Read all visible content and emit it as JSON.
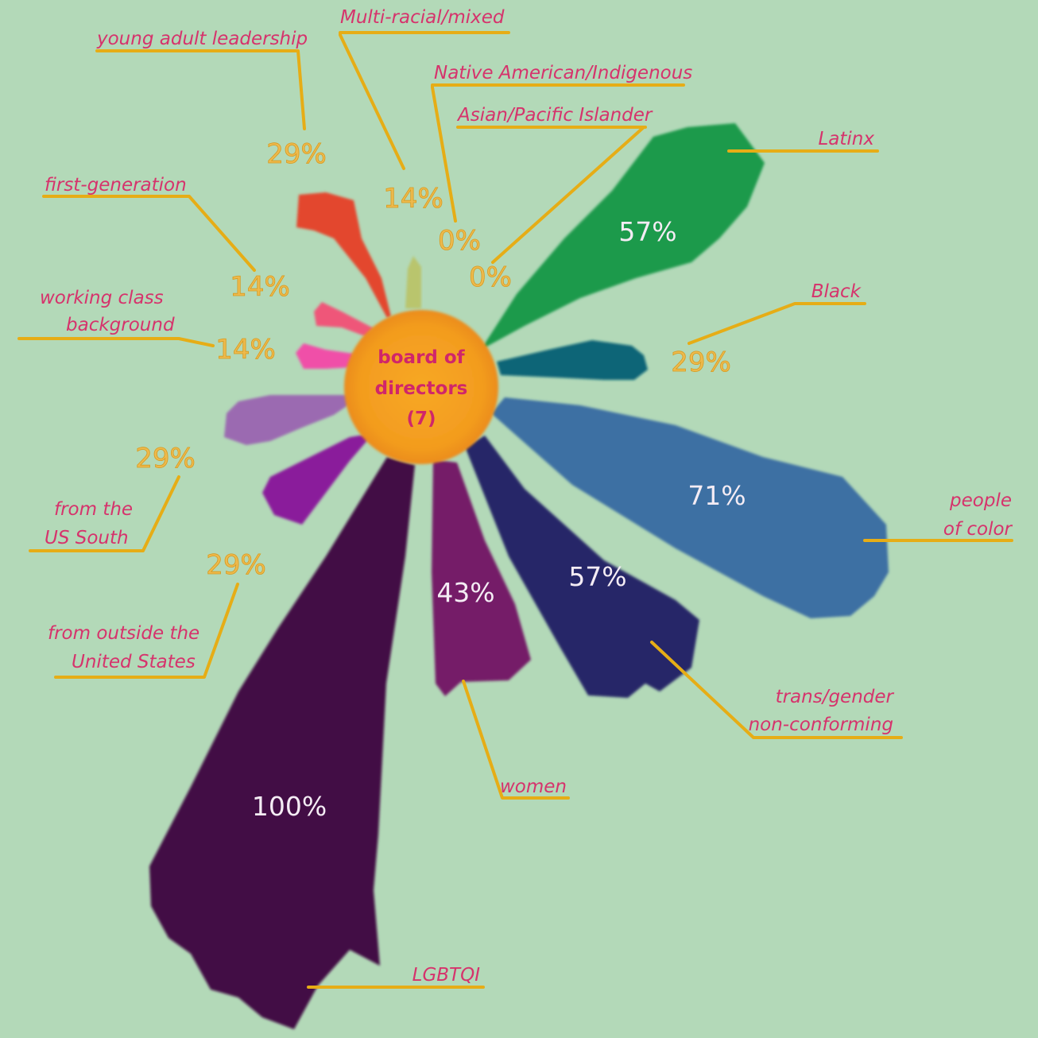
{
  "center": {
    "line1": "board of",
    "line2": "directors",
    "line3": "(7)"
  },
  "chart_data": {
    "type": "radial-bar",
    "center_label": "board of directors (7)",
    "unit": "%",
    "petals": [
      {
        "name": "Latinx",
        "value": 57,
        "color": "#1a9a4c"
      },
      {
        "name": "Black",
        "value": 29,
        "color": "#0c6577"
      },
      {
        "name": "people of color",
        "value": 71,
        "color": "#3c6fa3"
      },
      {
        "name": "trans/gender non-conforming",
        "value": 57,
        "color": "#252567"
      },
      {
        "name": "women",
        "value": 43,
        "color": "#741f68"
      },
      {
        "name": "LGBTQI",
        "value": 100,
        "color": "#420d44"
      },
      {
        "name": "from outside the United States",
        "value": 29,
        "color": "#8a1d9b"
      },
      {
        "name": "from the US South",
        "value": 29,
        "color": "#9b6bb1"
      },
      {
        "name": "working class background",
        "value": 14,
        "color": "#f04fa8"
      },
      {
        "name": "first-generation",
        "value": 14,
        "color": "#ef5679"
      },
      {
        "name": "young adult leadership",
        "value": 29,
        "color": "#e3472f"
      },
      {
        "name": "Multi-racial/mixed",
        "value": 14,
        "color": "#b9c56d"
      },
      {
        "name": "Native American/Indigenous",
        "value": 0,
        "color": "#c0c0c0"
      },
      {
        "name": "Asian/Pacific Islander",
        "value": 0,
        "color": "#c0c0c0"
      }
    ]
  },
  "labels": {
    "latinx": {
      "text": "Latinx",
      "pct": "57%"
    },
    "black": {
      "text": "Black",
      "pct": "29%"
    },
    "poc": {
      "line1": "people",
      "line2": "of color",
      "pct": "71%"
    },
    "trans": {
      "line1": "trans/gender",
      "line2": "non-conforming",
      "pct": "57%"
    },
    "women": {
      "text": "women",
      "pct": "43%"
    },
    "lgbtqi": {
      "text": "LGBTQI",
      "pct": "100%"
    },
    "outside_us": {
      "line1": "from outside the",
      "line2": "United States",
      "pct": "29%"
    },
    "us_south": {
      "line1": "from the",
      "line2": "US South",
      "pct": "29%"
    },
    "working_class": {
      "line1": "working class",
      "line2": "background",
      "pct": "14%"
    },
    "first_gen": {
      "text": "first-generation",
      "pct": "14%"
    },
    "young_adult": {
      "text": "young adult leadership",
      "pct": "29%"
    },
    "multiracial": {
      "text": "Multi-racial/mixed",
      "pct": "14%"
    },
    "native": {
      "text": "Native American/Indigenous",
      "pct": "0%"
    },
    "asian": {
      "text": "Asian/Pacific Islander",
      "pct": "0%"
    }
  },
  "colors": {
    "background": "#b3d9b8",
    "leader_line": "#e6ad16",
    "label_text": "#d6336c",
    "center_fill": "#f5a623"
  }
}
